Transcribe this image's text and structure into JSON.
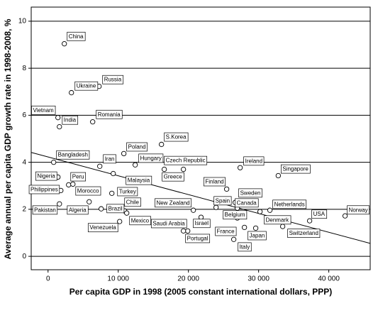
{
  "chart_data": {
    "type": "scatter",
    "x_label": "Per capita GDP in 1998 (2005 constant international dollars, PPP)",
    "y_label": "Average annual per capita GDP growth rate in 1998-2008, %",
    "xlim": [
      -2400,
      45900
    ],
    "ylim": [
      -0.57,
      10.6
    ],
    "xticks": [
      0,
      {
        "value": 10000,
        "label": "10 000"
      },
      {
        "value": 20000,
        "label": "20 000"
      },
      {
        "value": 30000,
        "label": "30 000"
      },
      {
        "value": 40000,
        "label": "40 000"
      }
    ],
    "yticks": [
      0,
      2,
      4,
      6,
      8,
      10
    ],
    "grid": true,
    "series": [
      {
        "name": null,
        "color": "#ffffff",
        "labels": [
          "China",
          "Russia",
          "Ukraine",
          "Vietnam",
          "India",
          "Romania",
          "S.Korea",
          "Poland",
          "Hungary",
          "Czech Republic",
          "Ireland",
          "Singapore",
          "Bangladesh",
          "Iran",
          "Greece",
          "Malaysia",
          "Nigeria",
          "Peru",
          "Philippines",
          "Morocco",
          "Turkey",
          "Chile",
          "Brazil",
          "Pakistan",
          "Algeria",
          "Venezuela",
          "Mexico",
          "New Zealand",
          "Saudi Arabia",
          "Portugal",
          "Israel",
          "Finland",
          "Spain",
          "Sweden",
          "Canada",
          "Belgium",
          "France",
          "Italy",
          "Japan",
          "Denmark",
          "Netherlands",
          "USA",
          "Switzerland",
          "Norway"
        ],
        "x": [
          2320,
          7270,
          3330,
          1410,
          1620,
          6360,
          16160,
          10800,
          12420,
          19290,
          27370,
          32800,
          800,
          7370,
          16560,
          9290,
          1410,
          2930,
          1820,
          3540,
          9090,
          10910,
          7570,
          1620,
          5860,
          10200,
          11210,
          20700,
          19900,
          19290,
          21800,
          25450,
          23940,
          26660,
          26970,
          26970,
          27980,
          26460,
          29590,
          30200,
          31610,
          37270,
          33430,
          42320
        ],
        "values": [
          9.04,
          7.23,
          6.96,
          5.9,
          5.51,
          5.72,
          4.76,
          4.37,
          3.89,
          3.7,
          3.77,
          3.43,
          4.0,
          3.83,
          3.7,
          3.52,
          3.37,
          3.04,
          2.8,
          3.07,
          2.68,
          1.93,
          2.02,
          2.23,
          2.32,
          1.48,
          1.84,
          1.96,
          1.08,
          1.08,
          1.66,
          2.86,
          2.08,
          2.29,
          2.05,
          1.63,
          1.23,
          0.72,
          1.2,
          1.9,
          1.96,
          1.51,
          1.27,
          1.72
        ]
      }
    ],
    "fit": {
      "color": "#000000",
      "x": [
        -2400,
        45900
      ],
      "y": [
        4.42,
        0.55
      ]
    }
  }
}
